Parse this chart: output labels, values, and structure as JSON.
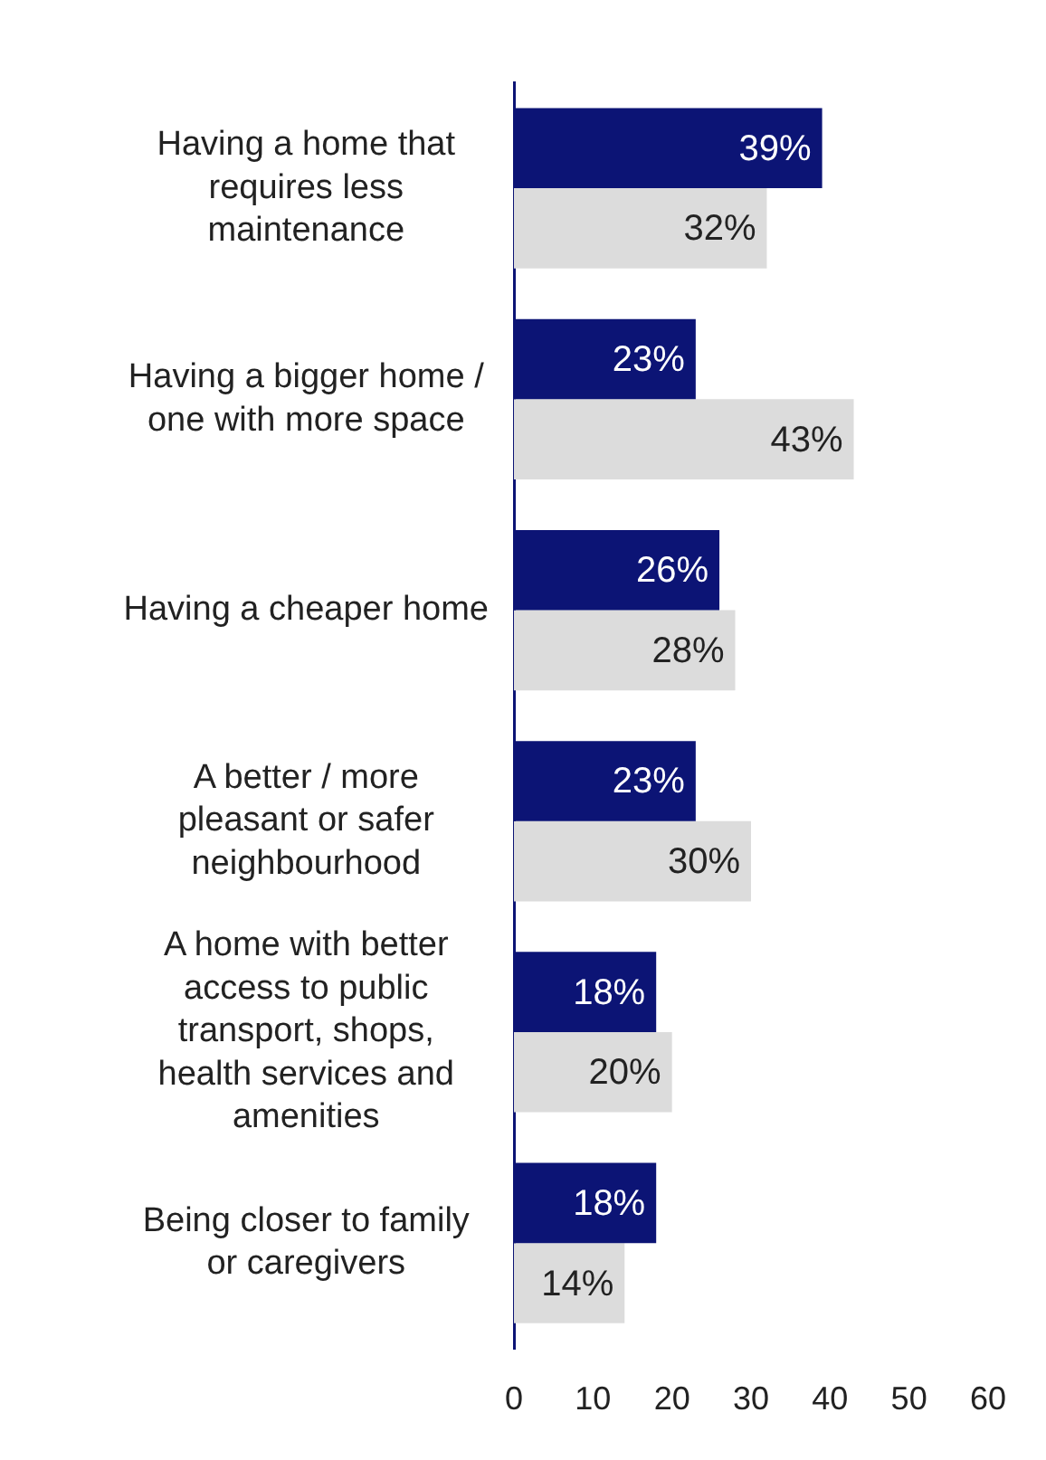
{
  "chart_data": {
    "type": "bar",
    "orientation": "horizontal",
    "categories": [
      "Having a home that requires less maintenance",
      "Having a bigger home / one with more space",
      "Having a cheaper home",
      "A better / more pleasant or safer neighbourhood",
      "A home with better access to public transport, shops, health services and amenities",
      "Being closer to family or caregivers"
    ],
    "series": [
      {
        "color": "#0c1475",
        "values": [
          39,
          23,
          26,
          23,
          18,
          18
        ],
        "value_labels": [
          "39%",
          "23%",
          "26%",
          "23%",
          "18%",
          "18%"
        ]
      },
      {
        "color": "#dcdcdc",
        "values": [
          32,
          43,
          28,
          30,
          20,
          14
        ],
        "value_labels": [
          "32%",
          "43%",
          "28%",
          "30%",
          "20%",
          "14%"
        ]
      }
    ],
    "xlim": [
      0,
      60
    ],
    "xticks": [
      0,
      10,
      20,
      30,
      40,
      50,
      60
    ],
    "grid": false,
    "legend": false
  }
}
